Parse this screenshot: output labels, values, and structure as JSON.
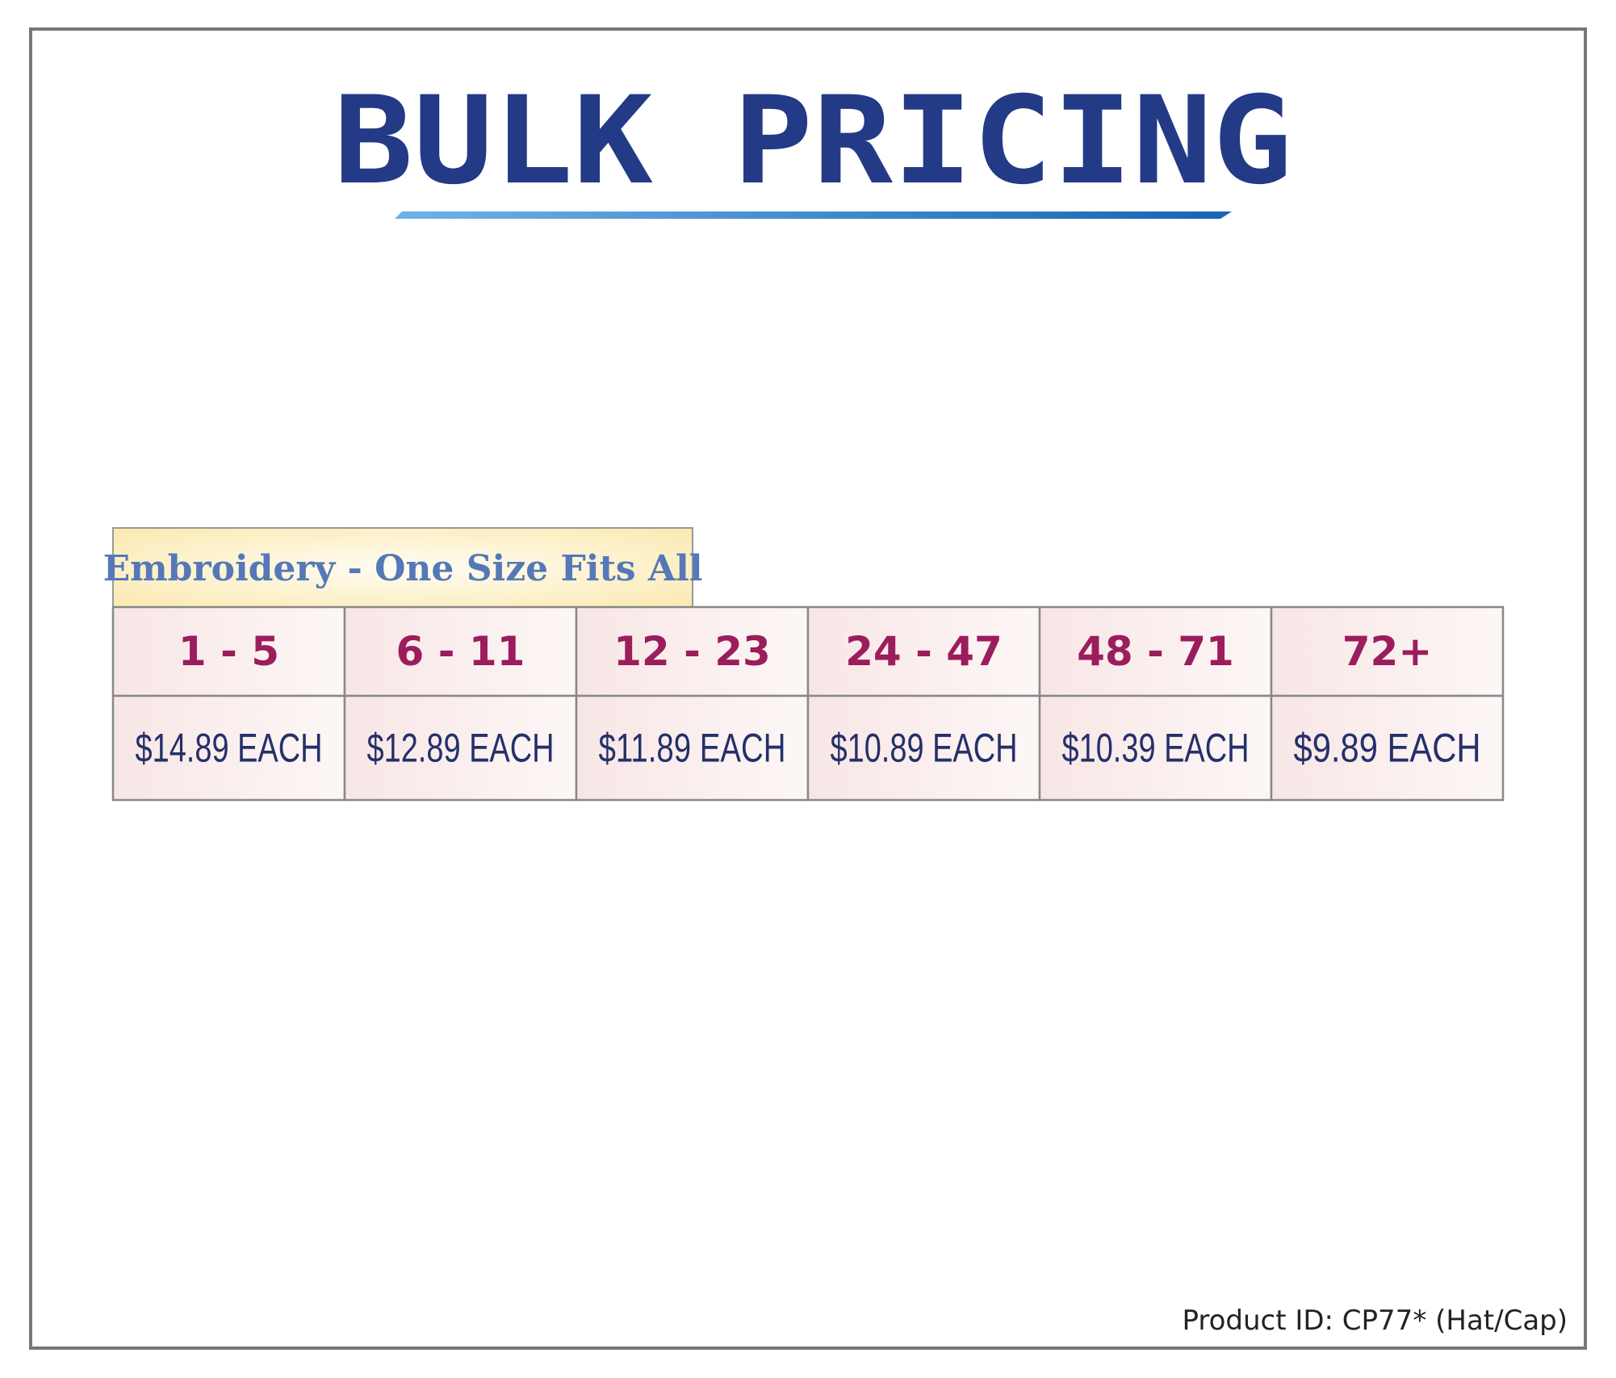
{
  "header": {
    "title": "BULK PRICING"
  },
  "table": {
    "caption": "Embroidery - One Size Fits All",
    "rows": [
      [
        "1 - 5",
        "6 - 11",
        "12 - 23",
        "24 - 47",
        "48 - 71",
        "72+"
      ],
      [
        "$14.89 EACH",
        "$12.89 EACH",
        "$11.89 EACH",
        "$10.89 EACH",
        "$10.39 EACH",
        "$9.89 EACH"
      ]
    ]
  },
  "footer": {
    "product_id": "Product ID: CP77* (Hat/Cap)"
  }
}
